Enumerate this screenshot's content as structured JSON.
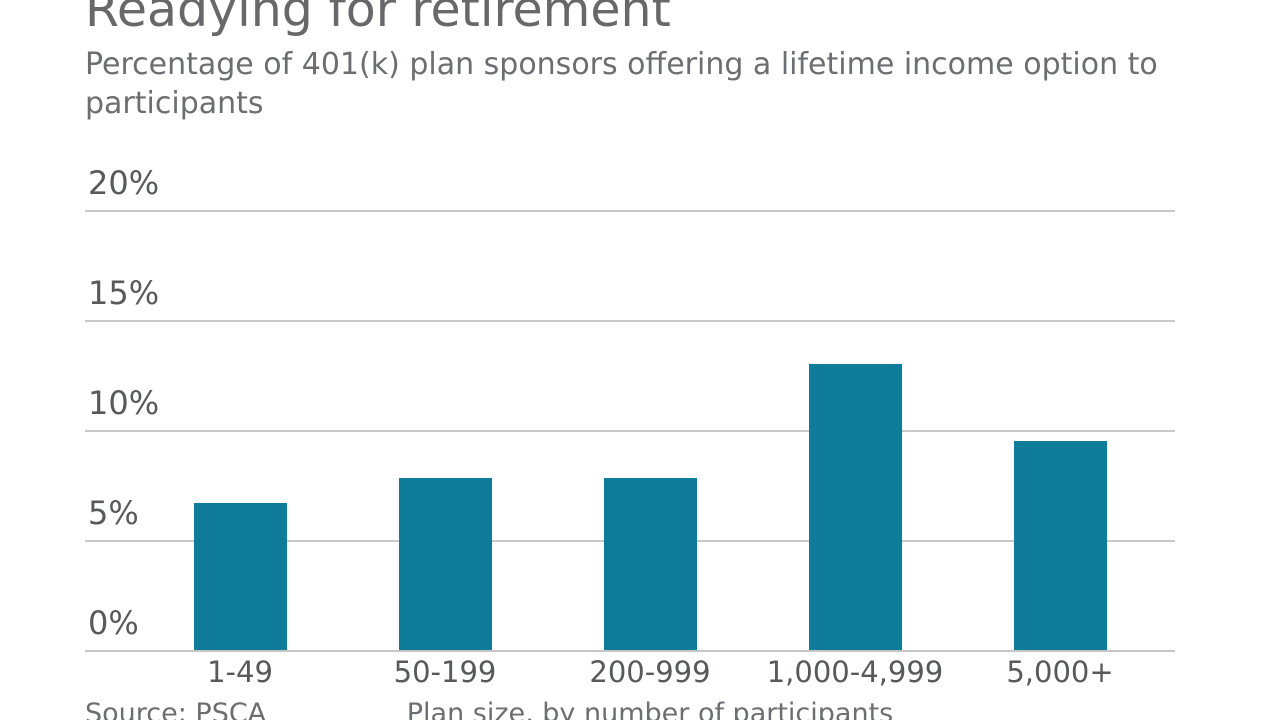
{
  "chart_data": {
    "type": "bar",
    "title": "Readying for retirement",
    "subtitle": "Percentage of 401(k) plan sponsors offering a lifetime income option to participants",
    "categories": [
      "1-49",
      "50-199",
      "200-999",
      "1,000-4,999",
      "5,000+"
    ],
    "values": [
      6.7,
      7.8,
      7.8,
      13,
      9.5
    ],
    "unit": "%",
    "y_ticks": [
      {
        "label": "20%",
        "value": 20
      },
      {
        "label": "15%",
        "value": 15
      },
      {
        "label": "10%",
        "value": 10
      },
      {
        "label": "5%",
        "value": 5
      },
      {
        "label": "0%",
        "value": 0
      }
    ],
    "ylim": [
      0,
      20
    ],
    "grid": true,
    "legend": "none",
    "xlabel": "Plan size, by number of participants",
    "source": "Source: PSCA",
    "colors": {
      "bar": "#0f7c99",
      "title_text": "#68686b",
      "subtitle_text": "#6d6e71",
      "axis_text": "#58595b",
      "caption_text": "#6d6e71",
      "gridline": "#c9c9c9",
      "axis_line": "#c4c5c6",
      "background": "#ffffff"
    }
  }
}
